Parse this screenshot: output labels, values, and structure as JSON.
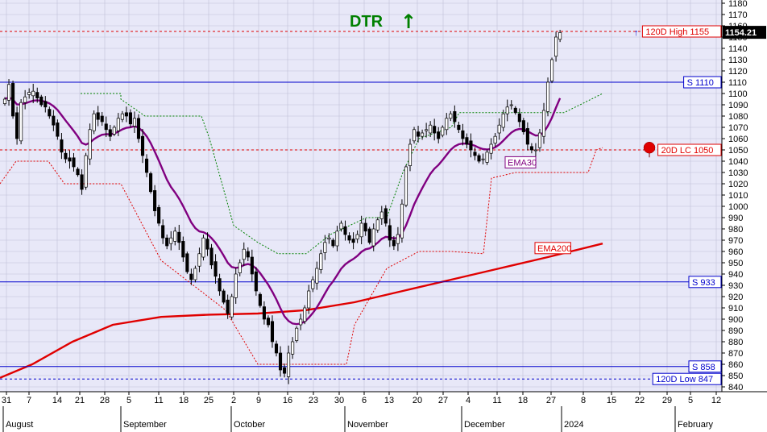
{
  "chart_data": {
    "type": "candlestick",
    "title": "DTR",
    "title_arrow": "↑",
    "colors": {
      "background": "#e8e8f8",
      "grid": "#c0c0d8",
      "up": "#ffffff",
      "down": "#000000",
      "ema30": "#800080",
      "ema200": "#e00000",
      "resistance": "#e00000",
      "support": "#0000cc",
      "donchian_upper": "#008000",
      "donchian_lower": "#e00000",
      "title": "#008000"
    },
    "y_axis": {
      "min": 840,
      "max": 1180,
      "step": 10,
      "tick_labels": [
        "840",
        "850",
        "860",
        "870",
        "880",
        "890",
        "900",
        "910",
        "920",
        "930",
        "940",
        "950",
        "960",
        "970",
        "980",
        "990",
        "1000",
        "1010",
        "1020",
        "1030",
        "1040",
        "1050",
        "1060",
        "1070",
        "1080",
        "1090",
        "1100",
        "1110",
        "1120",
        "1130",
        "1140",
        "1150",
        "1160",
        "1170",
        "1180"
      ]
    },
    "x_axis": {
      "day_labels": [
        "31",
        "7",
        "14",
        "21",
        "28",
        "5",
        "11",
        "18",
        "25",
        "2",
        "9",
        "16",
        "23",
        "30",
        "6",
        "13",
        "20",
        "27",
        "4",
        "11",
        "18",
        "27",
        "8",
        "15",
        "22",
        "29",
        "5",
        "12"
      ],
      "month_labels": [
        "August",
        "September",
        "October",
        "November",
        "December",
        "2024",
        "February"
      ]
    },
    "levels": [
      {
        "name": "120D High",
        "text": "120D High 1155",
        "value": 1155,
        "style": "dashed",
        "color": "#e00000",
        "label_color": "#e00000"
      },
      {
        "name": "S 1110",
        "text": "S 1110",
        "value": 1110,
        "style": "solid",
        "color": "#0000cc",
        "label_color": "#0000cc"
      },
      {
        "name": "20D LC",
        "text": "20D LC 1050",
        "value": 1050,
        "style": "dashed",
        "color": "#e00000",
        "label_color": "#e00000"
      },
      {
        "name": "S 933",
        "text": "S 933",
        "value": 933,
        "style": "solid",
        "color": "#0000cc",
        "label_color": "#0000cc"
      },
      {
        "name": "S 858",
        "text": "S 858",
        "value": 858,
        "style": "solid",
        "color": "#0000cc",
        "label_color": "#0000cc"
      },
      {
        "name": "120D Low",
        "text": "120D Low 847",
        "value": 847,
        "style": "dashed",
        "color": "#0000cc",
        "label_color": "#0000cc"
      }
    ],
    "last_price": "1154.21",
    "series_labels": {
      "ema30": "EMA30",
      "ema200": "EMA200"
    },
    "closes": [
      1095,
      1108,
      1080,
      1060,
      1092,
      1097,
      1101,
      1102,
      1096,
      1090,
      1088,
      1080,
      1072,
      1062,
      1048,
      1042,
      1040,
      1035,
      1028,
      1015,
      1045,
      1068,
      1082,
      1077,
      1075,
      1068,
      1062,
      1070,
      1078,
      1082,
      1080,
      1073,
      1078,
      1060,
      1045,
      1030,
      1013,
      996,
      985,
      972,
      965,
      972,
      978,
      968,
      955,
      942,
      935,
      945,
      958,
      972,
      962,
      948,
      938,
      925,
      915,
      905,
      920,
      940,
      950,
      962,
      955,
      940,
      925,
      912,
      900,
      895,
      880,
      870,
      855,
      852,
      870,
      880,
      892,
      900,
      910,
      925,
      935,
      945,
      958,
      968,
      972,
      965,
      978,
      985,
      975,
      970,
      968,
      975,
      985,
      978,
      968,
      980,
      988,
      995,
      985,
      970,
      965,
      975,
      1002,
      1035,
      1055,
      1068,
      1062,
      1065,
      1068,
      1072,
      1065,
      1060,
      1070,
      1078,
      1082,
      1075,
      1068,
      1060,
      1055,
      1050,
      1045,
      1040,
      1042,
      1048,
      1055,
      1062,
      1072,
      1082,
      1088,
      1090,
      1083,
      1075,
      1066,
      1055,
      1050,
      1050,
      1065,
      1085,
      1110,
      1130,
      1150,
      1154
    ]
  }
}
